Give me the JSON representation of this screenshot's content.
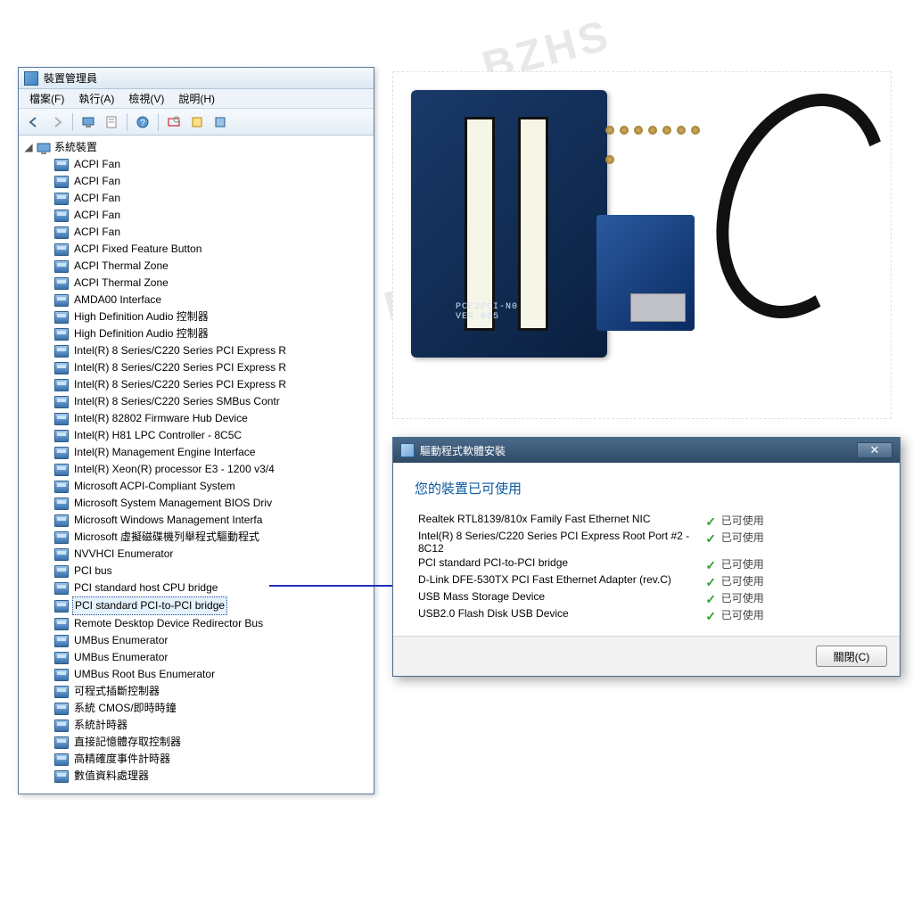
{
  "watermark_text": "BZHS",
  "devmgr": {
    "title": "裝置管理員",
    "menus": [
      "檔案(F)",
      "執行(A)",
      "檢視(V)",
      "說明(H)"
    ],
    "root_label": "系統裝置",
    "selected_index": 26,
    "items": [
      "ACPI Fan",
      "ACPI Fan",
      "ACPI Fan",
      "ACPI Fan",
      "ACPI Fan",
      "ACPI Fixed Feature Button",
      "ACPI Thermal Zone",
      "ACPI Thermal Zone",
      "AMDA00 Interface",
      "High Definition Audio 控制器",
      "High Definition Audio 控制器",
      "Intel(R) 8 Series/C220 Series PCI Express R",
      "Intel(R) 8 Series/C220 Series PCI Express R",
      "Intel(R) 8 Series/C220 Series PCI Express R",
      "Intel(R) 8 Series/C220 Series SMBus Contr",
      "Intel(R) 82802 Firmware Hub Device",
      "Intel(R) H81 LPC Controller - 8C5C",
      "Intel(R) Management Engine Interface",
      "Intel(R) Xeon(R) processor E3 - 1200 v3/4",
      "Microsoft ACPI-Compliant System",
      "Microsoft System Management BIOS Driv",
      "Microsoft Windows Management Interfa",
      "Microsoft 虛擬磁碟機列舉程式驅動程式",
      "NVVHCI Enumerator",
      "PCI bus",
      "PCI standard host CPU bridge",
      "PCI standard PCI-to-PCI bridge",
      "Remote Desktop Device Redirector Bus",
      "UMBus Enumerator",
      "UMBus Enumerator",
      "UMBus Root Bus Enumerator",
      "可程式插斷控制器",
      "系統 CMOS/即時時鐘",
      "系統計時器",
      "直接記憶體存取控制器",
      "高精確度事件計時器",
      "數值資料處理器"
    ]
  },
  "dialog": {
    "title": "驅動程式軟體安裝",
    "heading": "您的裝置已可使用",
    "status_label": "已可使用",
    "rows": [
      {
        "name": "Realtek RTL8139/810x Family Fast Ethernet NIC"
      },
      {
        "name": "Intel(R) 8 Series/C220 Series PCI Express Root Port #2 - 8C12"
      },
      {
        "name": "PCI standard PCI-to-PCI bridge"
      },
      {
        "name": "D-Link DFE-530TX PCI Fast Ethernet Adapter (rev.C)"
      },
      {
        "name": "USB Mass Storage Device"
      },
      {
        "name": "USB2.0 Flash Disk USB Device"
      }
    ],
    "close_button": "關閉(C)"
  },
  "hardware": {
    "pcb_text_1": "PCE2PCI-N01",
    "pcb_text_2": "VER 005"
  },
  "colors": {
    "window_border": "#5a7ca0",
    "dialog_titlebar": "#2f4a66",
    "heading_blue": "#0b5aa0",
    "check_green": "#2e9e2e",
    "connector_blue": "#2030c0"
  }
}
